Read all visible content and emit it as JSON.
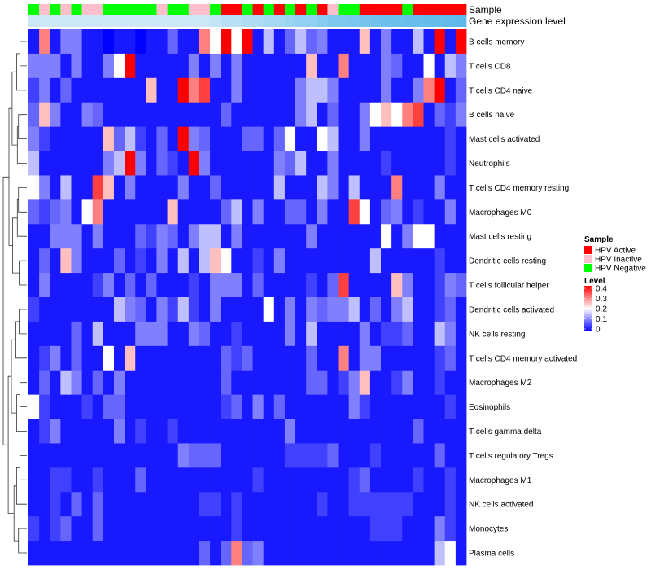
{
  "chart_data": {
    "type": "heatmap",
    "title": "",
    "annotations": [
      {
        "name": "Sample",
        "type": "categorical",
        "values": [
          "HPV Negative",
          "HPV Inactive",
          "HPV Negative",
          "HPV Inactive",
          "HPV Negative",
          "HPV Inactive",
          "HPV Inactive",
          "HPV Negative",
          "HPV Negative",
          "HPV Negative",
          "HPV Negative",
          "HPV Negative",
          "HPV Inactive",
          "HPV Negative",
          "HPV Negative",
          "HPV Inactive",
          "HPV Inactive",
          "HPV Negative",
          "HPV Active",
          "HPV Active",
          "HPV Negative",
          "HPV Active",
          "HPV Negative",
          "HPV Active",
          "HPV Negative",
          "HPV Active",
          "HPV Negative",
          "HPV Active",
          "HPV Inactive",
          "HPV Negative",
          "HPV Negative",
          "HPV Active",
          "HPV Active",
          "HPV Active",
          "HPV Active",
          "HPV Negative",
          "HPV Active",
          "HPV Active",
          "HPV Active",
          "HPV Active",
          "HPV Active"
        ]
      },
      {
        "name": "Gene expression level",
        "type": "continuous",
        "values": [
          0.9,
          0.9,
          0.9,
          0.9,
          0.9,
          0.9,
          0.9,
          0.9,
          0.9,
          0.9,
          0.9,
          0.9,
          0.9,
          0.9,
          0.9,
          0.9,
          0.9,
          0.85,
          0.8,
          0.8,
          0.75,
          0.75,
          0.7,
          0.7,
          0.65,
          0.6,
          0.6,
          0.55,
          0.5,
          0.5,
          0.45,
          0.4,
          0.35,
          0.3,
          0.3,
          0.25,
          0.25,
          0.2,
          0.2,
          0.15,
          0.1
        ]
      }
    ],
    "rows": [
      "B cells memory",
      "T cells CD8",
      "T cells CD4 naive",
      "B cells naive",
      "Mast cells activated",
      "Neutrophils",
      "T cells CD4 memory resting",
      "Macrophages M0",
      "Mast cells resting",
      "Dendritic cells resting",
      "T cells follicular helper",
      "Dendritic cells activated",
      "NK cells resting",
      "T cells CD4 memory activated",
      "Macrophages M2",
      "Eosinophils",
      "T cells gamma delta",
      "T cells regulatory  Tregs",
      "Macrophages M1",
      "NK cells activated",
      "Monocytes",
      "Plasma cells"
    ],
    "values": [
      [
        0.02,
        0.3,
        0.02,
        0.1,
        0.1,
        0.02,
        0.02,
        0.0,
        0.02,
        0.02,
        0.0,
        0.02,
        0.02,
        0.08,
        0.02,
        0.02,
        0.3,
        0.2,
        0.4,
        0.2,
        0.4,
        0.02,
        0.15,
        0.02,
        0.08,
        0.15,
        0.08,
        0.1,
        0.02,
        0.02,
        0.02,
        0.25,
        0.02,
        0.1,
        0.02,
        0.02,
        0.15,
        0.02,
        0.4,
        0.02,
        0.4
      ],
      [
        0.1,
        0.1,
        0.1,
        0.02,
        0.1,
        0.02,
        0.02,
        0.1,
        0.2,
        0.4,
        0.02,
        0.02,
        0.02,
        0.02,
        0.02,
        0.1,
        0.02,
        0.1,
        0.02,
        0.1,
        0.02,
        0.02,
        0.02,
        0.02,
        0.02,
        0.02,
        0.25,
        0.02,
        0.02,
        0.3,
        0.02,
        0.02,
        0.02,
        0.1,
        0.08,
        0.02,
        0.02,
        0.2,
        0.02,
        0.15,
        0.1
      ],
      [
        0.05,
        0.1,
        0.02,
        0.08,
        0.02,
        0.02,
        0.02,
        0.02,
        0.02,
        0.02,
        0.02,
        0.25,
        0.02,
        0.02,
        0.4,
        0.3,
        0.35,
        0.02,
        0.02,
        0.1,
        0.02,
        0.02,
        0.02,
        0.02,
        0.02,
        0.1,
        0.15,
        0.15,
        0.1,
        0.02,
        0.02,
        0.02,
        0.02,
        0.1,
        0.02,
        0.02,
        0.1,
        0.3,
        0.4,
        0.02,
        0.08
      ],
      [
        0.08,
        0.25,
        0.1,
        0.02,
        0.02,
        0.1,
        0.08,
        0.02,
        0.02,
        0.02,
        0.02,
        0.02,
        0.02,
        0.02,
        0.02,
        0.02,
        0.02,
        0.02,
        0.08,
        0.02,
        0.02,
        0.02,
        0.02,
        0.02,
        0.02,
        0.1,
        0.15,
        0.02,
        0.08,
        0.02,
        0.02,
        0.1,
        0.2,
        0.25,
        0.2,
        0.3,
        0.35,
        0.02,
        0.08,
        0.05,
        0.1
      ],
      [
        0.1,
        0.05,
        0.02,
        0.02,
        0.02,
        0.02,
        0.02,
        0.25,
        0.08,
        0.15,
        0.05,
        0.02,
        0.08,
        0.02,
        0.4,
        0.1,
        0.08,
        0.02,
        0.02,
        0.02,
        0.08,
        0.08,
        0.02,
        0.08,
        0.2,
        0.02,
        0.02,
        0.2,
        0.15,
        0.02,
        0.02,
        0.1,
        0.02,
        0.02,
        0.02,
        0.02,
        0.02,
        0.02,
        0.02,
        0.05,
        0.02
      ],
      [
        0.15,
        0.02,
        0.02,
        0.02,
        0.02,
        0.02,
        0.02,
        0.1,
        0.15,
        0.4,
        0.1,
        0.02,
        0.08,
        0.05,
        0.02,
        0.4,
        0.1,
        0.02,
        0.02,
        0.02,
        0.02,
        0.02,
        0.02,
        0.1,
        0.08,
        0.15,
        0.02,
        0.02,
        0.1,
        0.02,
        0.02,
        0.02,
        0.02,
        0.05,
        0.02,
        0.02,
        0.02,
        0.02,
        0.02,
        0.05,
        0.02
      ],
      [
        0.2,
        0.1,
        0.02,
        0.15,
        0.02,
        0.02,
        0.35,
        0.25,
        0.02,
        0.1,
        0.02,
        0.02,
        0.02,
        0.02,
        0.1,
        0.02,
        0.02,
        0.08,
        0.02,
        0.02,
        0.02,
        0.02,
        0.02,
        0.15,
        0.02,
        0.02,
        0.02,
        0.15,
        0.1,
        0.02,
        0.15,
        0.02,
        0.02,
        0.02,
        0.3,
        0.02,
        0.02,
        0.02,
        0.1,
        0.02,
        0.02
      ],
      [
        0.08,
        0.05,
        0.08,
        0.1,
        0.02,
        0.2,
        0.3,
        0.02,
        0.02,
        0.02,
        0.02,
        0.02,
        0.02,
        0.25,
        0.02,
        0.02,
        0.02,
        0.02,
        0.08,
        0.15,
        0.02,
        0.1,
        0.02,
        0.02,
        0.08,
        0.08,
        0.02,
        0.1,
        0.02,
        0.02,
        0.35,
        0.2,
        0.02,
        0.08,
        0.1,
        0.02,
        0.05,
        0.02,
        0.02,
        0.1,
        0.02
      ],
      [
        0.02,
        0.02,
        0.1,
        0.1,
        0.1,
        0.02,
        0.1,
        0.02,
        0.02,
        0.02,
        0.08,
        0.05,
        0.1,
        0.08,
        0.02,
        0.1,
        0.15,
        0.15,
        0.02,
        0.1,
        0.02,
        0.02,
        0.02,
        0.02,
        0.02,
        0.02,
        0.1,
        0.02,
        0.02,
        0.02,
        0.02,
        0.02,
        0.02,
        0.2,
        0.02,
        0.1,
        0.2,
        0.2,
        0.02,
        0.02,
        0.02
      ],
      [
        0.02,
        0.08,
        0.02,
        0.25,
        0.1,
        0.02,
        0.02,
        0.02,
        0.08,
        0.02,
        0.05,
        0.02,
        0.1,
        0.02,
        0.15,
        0.02,
        0.15,
        0.25,
        0.2,
        0.02,
        0.02,
        0.05,
        0.02,
        0.1,
        0.02,
        0.02,
        0.02,
        0.02,
        0.02,
        0.02,
        0.02,
        0.02,
        0.15,
        0.02,
        0.02,
        0.02,
        0.02,
        0.02,
        0.05,
        0.02,
        0.02
      ],
      [
        0.02,
        0.1,
        0.02,
        0.02,
        0.02,
        0.02,
        0.05,
        0.1,
        0.02,
        0.08,
        0.02,
        0.08,
        0.02,
        0.02,
        0.02,
        0.05,
        0.02,
        0.1,
        0.1,
        0.1,
        0.02,
        0.08,
        0.02,
        0.02,
        0.02,
        0.02,
        0.05,
        0.02,
        0.08,
        0.35,
        0.02,
        0.02,
        0.02,
        0.02,
        0.25,
        0.1,
        0.02,
        0.02,
        0.05,
        0.1,
        0.08
      ],
      [
        0.05,
        0.02,
        0.02,
        0.02,
        0.02,
        0.02,
        0.02,
        0.02,
        0.15,
        0.1,
        0.08,
        0.02,
        0.1,
        0.05,
        0.15,
        0.05,
        0.02,
        0.1,
        0.02,
        0.02,
        0.02,
        0.02,
        0.2,
        0.02,
        0.1,
        0.02,
        0.1,
        0.08,
        0.1,
        0.1,
        0.15,
        0.02,
        0.08,
        0.02,
        0.1,
        0.15,
        0.02,
        0.02,
        0.05,
        0.08,
        0.02
      ],
      [
        0.02,
        0.02,
        0.02,
        0.02,
        0.08,
        0.02,
        0.15,
        0.02,
        0.02,
        0.02,
        0.1,
        0.1,
        0.1,
        0.02,
        0.02,
        0.1,
        0.08,
        0.02,
        0.02,
        0.05,
        0.02,
        0.02,
        0.02,
        0.02,
        0.1,
        0.02,
        0.15,
        0.02,
        0.02,
        0.02,
        0.02,
        0.1,
        0.02,
        0.05,
        0.05,
        0.08,
        0.02,
        0.02,
        0.15,
        0.1,
        0.02
      ],
      [
        0.02,
        0.05,
        0.1,
        0.02,
        0.08,
        0.02,
        0.02,
        0.2,
        0.02,
        0.25,
        0.02,
        0.02,
        0.02,
        0.02,
        0.02,
        0.02,
        0.02,
        0.02,
        0.08,
        0.05,
        0.08,
        0.02,
        0.02,
        0.02,
        0.02,
        0.02,
        0.08,
        0.02,
        0.02,
        0.3,
        0.02,
        0.1,
        0.1,
        0.02,
        0.02,
        0.02,
        0.02,
        0.02,
        0.05,
        0.08,
        0.02
      ],
      [
        0.02,
        0.08,
        0.02,
        0.15,
        0.1,
        0.02,
        0.08,
        0.02,
        0.1,
        0.02,
        0.02,
        0.02,
        0.02,
        0.02,
        0.02,
        0.02,
        0.02,
        0.02,
        0.08,
        0.02,
        0.02,
        0.02,
        0.02,
        0.02,
        0.02,
        0.02,
        0.08,
        0.08,
        0.02,
        0.05,
        0.1,
        0.25,
        0.02,
        0.02,
        0.05,
        0.1,
        0.02,
        0.02,
        0.05,
        0.02,
        0.02
      ],
      [
        0.2,
        0.05,
        0.02,
        0.02,
        0.02,
        0.05,
        0.02,
        0.08,
        0.08,
        0.02,
        0.02,
        0.02,
        0.02,
        0.02,
        0.02,
        0.02,
        0.02,
        0.02,
        0.05,
        0.08,
        0.02,
        0.1,
        0.02,
        0.08,
        0.02,
        0.02,
        0.02,
        0.02,
        0.02,
        0.02,
        0.1,
        0.05,
        0.02,
        0.02,
        0.02,
        0.02,
        0.02,
        0.02,
        0.02,
        0.05,
        0.02
      ],
      [
        0.02,
        0.05,
        0.1,
        0.02,
        0.02,
        0.02,
        0.02,
        0.02,
        0.1,
        0.02,
        0.05,
        0.02,
        0.02,
        0.05,
        0.02,
        0.02,
        0.02,
        0.02,
        0.02,
        0.02,
        0.02,
        0.02,
        0.02,
        0.02,
        0.1,
        0.02,
        0.02,
        0.02,
        0.02,
        0.02,
        0.02,
        0.02,
        0.02,
        0.02,
        0.02,
        0.02,
        0.08,
        0.02,
        0.02,
        0.02,
        0.02
      ],
      [
        0.02,
        0.02,
        0.02,
        0.02,
        0.02,
        0.02,
        0.02,
        0.02,
        0.02,
        0.02,
        0.02,
        0.02,
        0.02,
        0.02,
        0.1,
        0.08,
        0.08,
        0.08,
        0.02,
        0.02,
        0.02,
        0.02,
        0.02,
        0.02,
        0.05,
        0.05,
        0.05,
        0.05,
        0.08,
        0.02,
        0.02,
        0.02,
        0.05,
        0.02,
        0.02,
        0.02,
        0.02,
        0.02,
        0.08,
        0.02,
        0.02
      ],
      [
        0.02,
        0.02,
        0.05,
        0.05,
        0.02,
        0.02,
        0.05,
        0.02,
        0.02,
        0.02,
        0.08,
        0.02,
        0.02,
        0.02,
        0.02,
        0.02,
        0.02,
        0.02,
        0.02,
        0.02,
        0.02,
        0.05,
        0.02,
        0.02,
        0.02,
        0.02,
        0.02,
        0.02,
        0.02,
        0.02,
        0.05,
        0.08,
        0.02,
        0.02,
        0.02,
        0.02,
        0.05,
        0.02,
        0.02,
        0.05,
        0.02
      ],
      [
        0.02,
        0.02,
        0.05,
        0.02,
        0.08,
        0.02,
        0.08,
        0.02,
        0.02,
        0.02,
        0.02,
        0.02,
        0.02,
        0.02,
        0.02,
        0.02,
        0.05,
        0.05,
        0.02,
        0.05,
        0.02,
        0.02,
        0.02,
        0.02,
        0.02,
        0.02,
        0.02,
        0.05,
        0.02,
        0.02,
        0.05,
        0.05,
        0.05,
        0.05,
        0.05,
        0.05,
        0.02,
        0.02,
        0.02,
        0.05,
        0.02
      ],
      [
        0.05,
        0.02,
        0.05,
        0.08,
        0.02,
        0.02,
        0.08,
        0.02,
        0.02,
        0.02,
        0.02,
        0.02,
        0.02,
        0.02,
        0.02,
        0.02,
        0.02,
        0.02,
        0.02,
        0.05,
        0.02,
        0.02,
        0.02,
        0.02,
        0.02,
        0.02,
        0.02,
        0.02,
        0.02,
        0.02,
        0.02,
        0.02,
        0.05,
        0.05,
        0.05,
        0.02,
        0.02,
        0.02,
        0.1,
        0.05,
        0.02
      ],
      [
        0.02,
        0.02,
        0.02,
        0.02,
        0.02,
        0.02,
        0.02,
        0.02,
        0.02,
        0.02,
        0.02,
        0.02,
        0.02,
        0.02,
        0.02,
        0.02,
        0.08,
        0.02,
        0.08,
        0.3,
        0.08,
        0.1,
        0.02,
        0.02,
        0.02,
        0.02,
        0.02,
        0.02,
        0.02,
        0.02,
        0.02,
        0.02,
        0.02,
        0.02,
        0.02,
        0.02,
        0.02,
        0.02,
        0.15,
        0.2,
        0.02
      ]
    ],
    "legends": {
      "sample": {
        "title": "Sample",
        "items": [
          {
            "label": "HPV Active",
            "color": "#ff0000"
          },
          {
            "label": "HPV Inactive",
            "color": "#ffc0cb"
          },
          {
            "label": "HPV Negative",
            "color": "#00ff00"
          }
        ]
      },
      "level": {
        "title": "Level",
        "range": [
          0,
          0.4
        ],
        "ticks": [
          "0.4",
          "0.3",
          "0.2",
          "0.1",
          "0"
        ],
        "colors": [
          "#0000ff",
          "#ffffff",
          "#ff0000"
        ]
      }
    },
    "expression_bar_colors": [
      "#dff0f8",
      "#7ec8ee",
      "#56b4e9"
    ],
    "dendrogram": "hierarchical clustering of rows, left side"
  }
}
